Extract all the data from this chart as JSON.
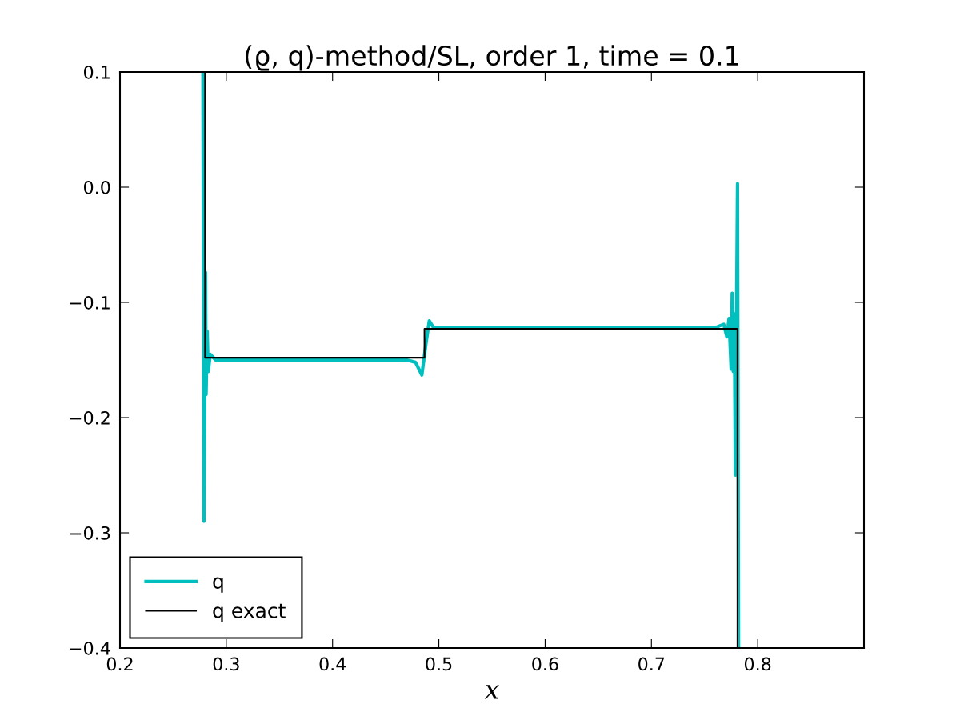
{
  "chart_data": {
    "type": "line",
    "title": "(ϱ, q)-method/SL, order 1, time = 0.1",
    "xlabel": "x",
    "xlim": [
      0.2,
      0.9
    ],
    "xticks": [
      0.2,
      0.3,
      0.4,
      0.5,
      0.6,
      0.7,
      0.8
    ],
    "ylim": [
      -0.4,
      0.1
    ],
    "yticks": [
      {
        "value": -0.4,
        "label": "−0.4"
      },
      {
        "value": -0.3,
        "label": "−0.3"
      },
      {
        "value": -0.2,
        "label": "−0.2"
      },
      {
        "value": -0.1,
        "label": "−0.1"
      },
      {
        "value": 0.0,
        "label": "0.0"
      },
      {
        "value": 0.1,
        "label": "0.1"
      }
    ],
    "legend": "bottom left",
    "grid": false,
    "marker": "none",
    "line_style": "solid",
    "series": [
      {
        "name": "q",
        "color": "#00bfbf",
        "x": [
          0.278,
          0.279,
          0.2805,
          0.281,
          0.282,
          0.283,
          0.285,
          0.29,
          0.35,
          0.4,
          0.47,
          0.478,
          0.484,
          0.488,
          0.491,
          0.495,
          0.5,
          0.6,
          0.7,
          0.76,
          0.768,
          0.771,
          0.773,
          0.775,
          0.776,
          0.777,
          0.778,
          0.779,
          0.781,
          0.782
        ],
        "values": [
          0.1,
          -0.29,
          -0.074,
          -0.18,
          -0.125,
          -0.16,
          -0.145,
          -0.15,
          -0.15,
          -0.15,
          -0.15,
          -0.152,
          -0.163,
          -0.135,
          -0.116,
          -0.122,
          -0.122,
          -0.122,
          -0.122,
          -0.122,
          -0.119,
          -0.13,
          -0.114,
          -0.158,
          -0.092,
          -0.16,
          -0.11,
          -0.25,
          0.003,
          -0.4
        ]
      },
      {
        "name": "q exact",
        "color": "#000000",
        "x": [
          0.28,
          0.28,
          0.4865,
          0.4865,
          0.781,
          0.781
        ],
        "values": [
          0.1,
          -0.148,
          -0.148,
          -0.123,
          -0.123,
          -0.4
        ]
      }
    ]
  }
}
